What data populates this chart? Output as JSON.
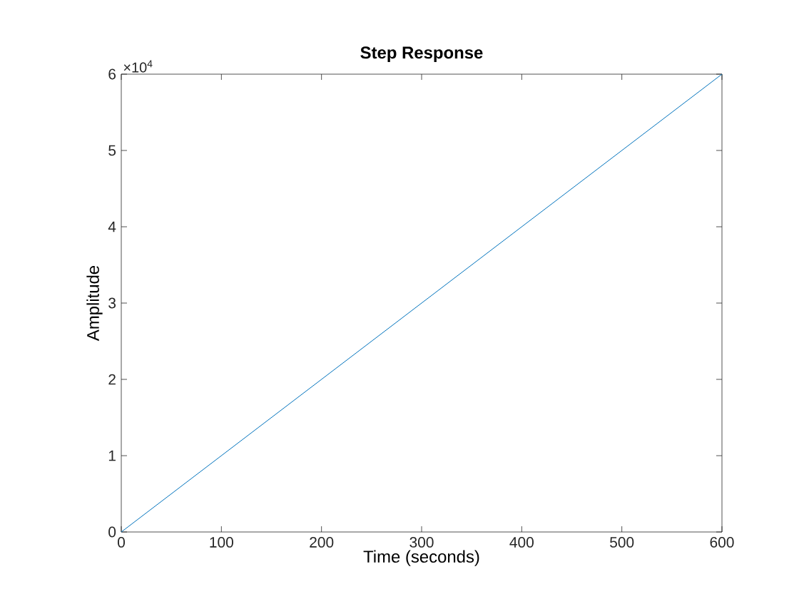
{
  "chart_data": {
    "type": "line",
    "title": "Step Response",
    "xlabel": "Time (seconds)",
    "ylabel": "Amplitude",
    "x": [
      0,
      600
    ],
    "values": [
      0,
      6
    ],
    "color": "#0072bd",
    "xlim": [
      0,
      600
    ],
    "xticks": [
      0,
      100,
      200,
      300,
      400,
      500,
      600
    ],
    "ylim": [
      0,
      6
    ],
    "yticks": [
      0,
      1,
      2,
      3,
      4,
      5,
      6
    ],
    "annotations": [
      "×10$^{4}$"
    ]
  }
}
